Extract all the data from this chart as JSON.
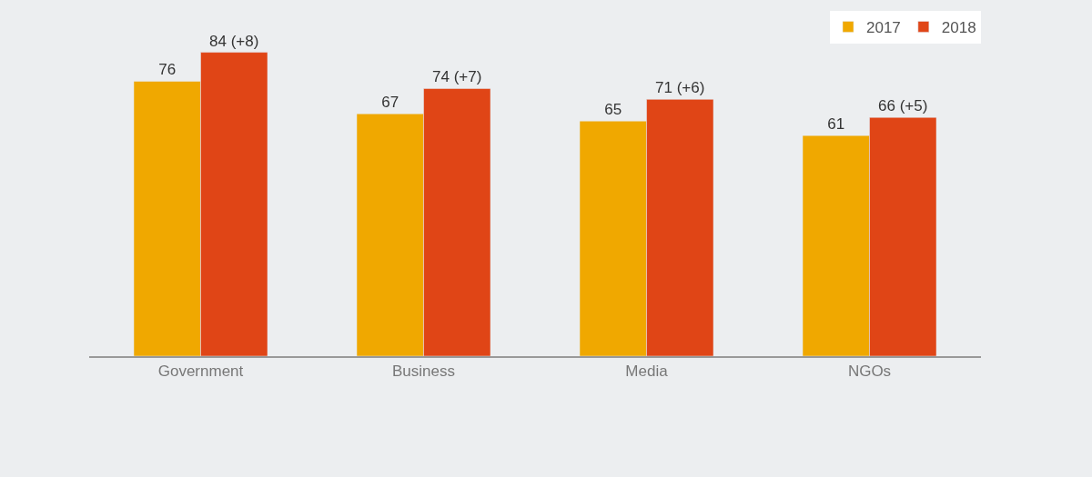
{
  "chart_data": {
    "type": "bar",
    "categories": [
      "Government",
      "Business",
      "Media",
      "NGOs"
    ],
    "series": [
      {
        "name": "2017",
        "color": "#f0a800",
        "values": [
          76,
          67,
          65,
          61
        ],
        "value_labels": [
          "76",
          "67",
          "65",
          "61"
        ]
      },
      {
        "name": "2018",
        "color": "#e04516",
        "values": [
          84,
          74,
          71,
          66
        ],
        "value_labels": [
          "84 (+8)",
          "74 (+7)",
          "71 (+6)",
          "66 (+5)"
        ]
      }
    ],
    "legend": "top right",
    "grid": false
  }
}
